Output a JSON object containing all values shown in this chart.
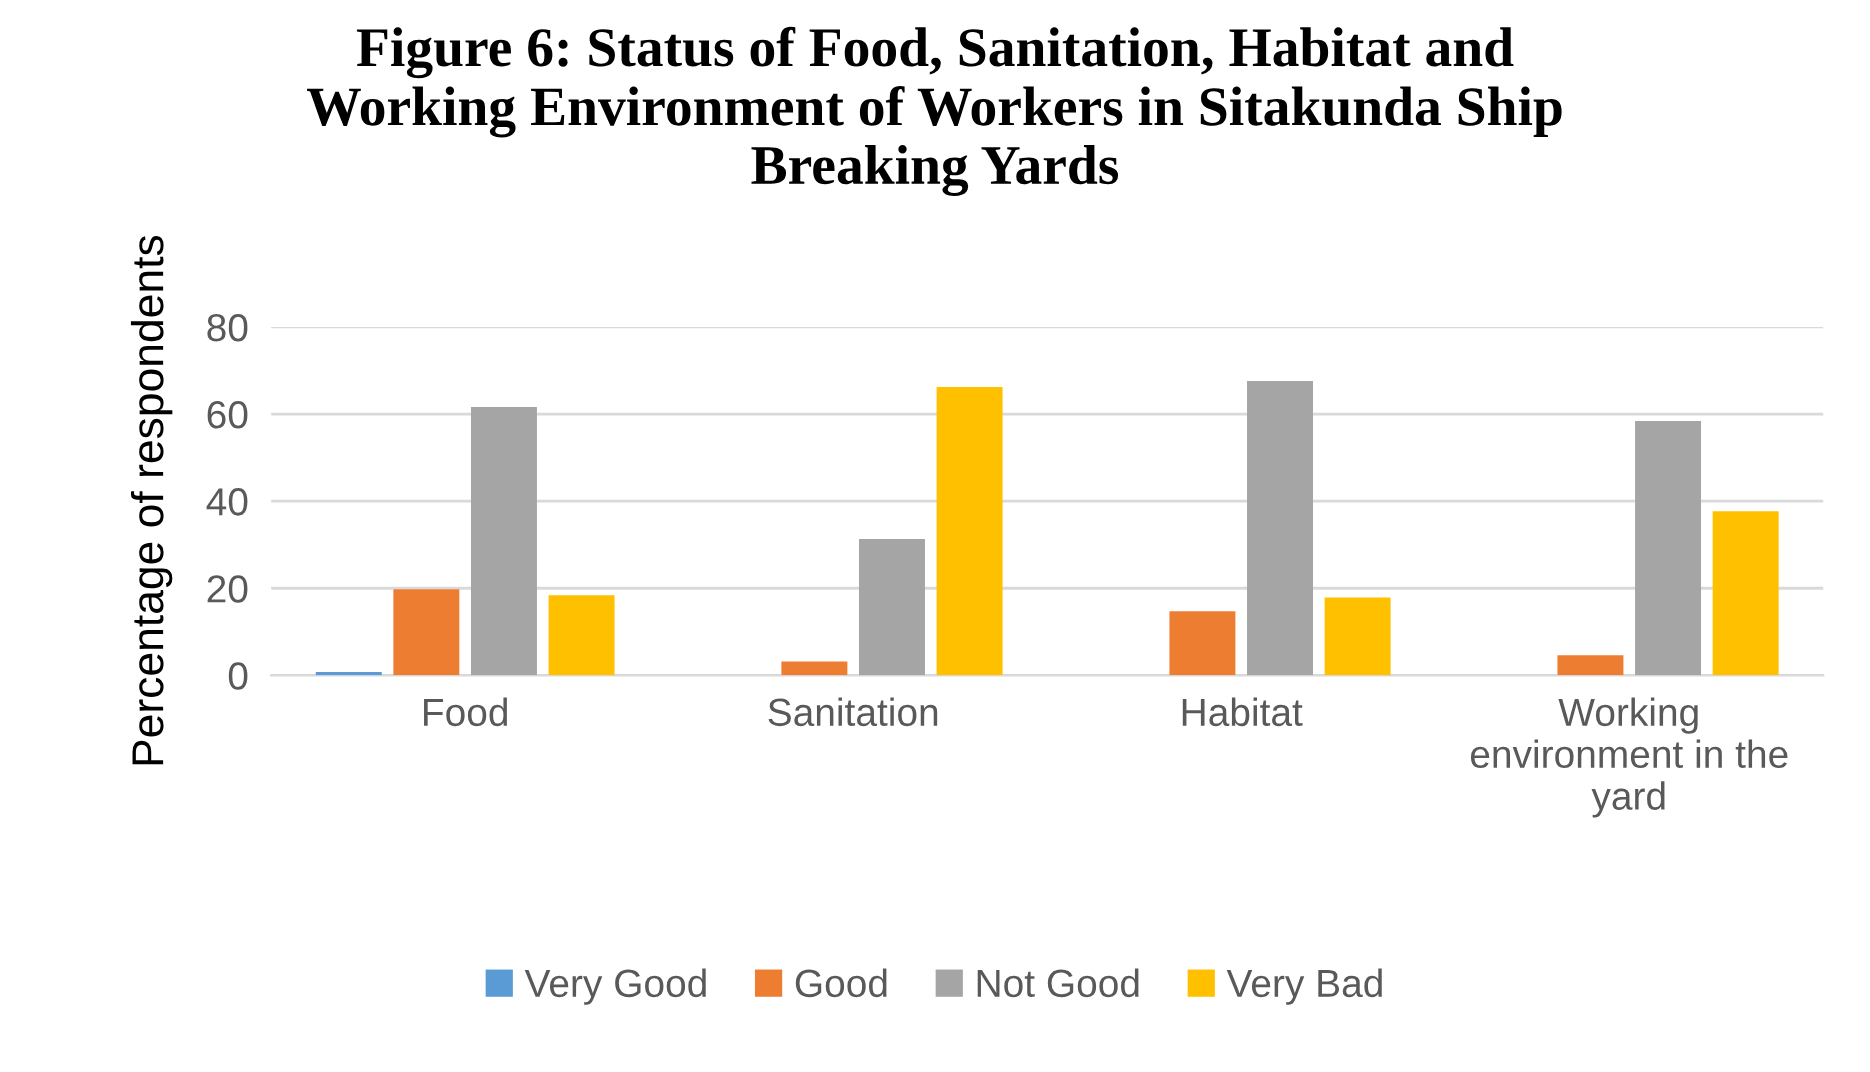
{
  "chart_data": {
    "type": "bar",
    "title": "Figure 6: Status of Food, Sanitation, Habitat and Working Environment of Workers in Sitakunda Ship Breaking Yards",
    "ylabel": "Percentage of respondents",
    "categories": [
      "Food",
      "Sanitation",
      "Habitat",
      "Working environment in the yard"
    ],
    "series": [
      {
        "name": "Very Good",
        "color": "#5b9bd5",
        "values": [
          0.8,
          0,
          0,
          0
        ]
      },
      {
        "name": "Good",
        "color": "#ed7d31",
        "values": [
          19.8,
          3.2,
          14.7,
          4.6
        ]
      },
      {
        "name": "Not Good",
        "color": "#a5a5a5",
        "values": [
          61.6,
          31.3,
          67.6,
          58.4
        ]
      },
      {
        "name": "Very Bad",
        "color": "#ffc000",
        "values": [
          18.4,
          66.2,
          17.9,
          37.7
        ]
      }
    ],
    "ylim": [
      0,
      80
    ],
    "yticks": [
      0,
      20,
      40,
      60,
      80
    ],
    "grid": "y",
    "legend": "bottom"
  }
}
